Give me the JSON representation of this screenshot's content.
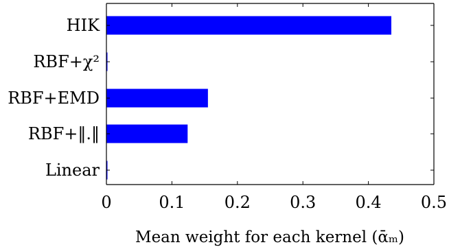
{
  "chart_data": {
    "type": "bar",
    "orientation": "horizontal",
    "categories": [
      "HIK",
      "RBF+χ²",
      "RBF+EMD",
      "RBF+‖.‖",
      "Linear"
    ],
    "values": [
      0.435,
      0.001,
      0.155,
      0.124,
      0.001
    ],
    "xlabel": "Mean weight for each kernel (ᾱₘ)",
    "ylabel": "",
    "title": "",
    "xlim": [
      0,
      0.5
    ],
    "xticks": [
      0,
      0.1,
      0.2,
      0.3,
      0.4,
      0.5
    ],
    "xtick_labels": [
      "0",
      "0.1",
      "0.2",
      "0.3",
      "0.4",
      "0.5"
    ],
    "grid": false,
    "bar_color": "#0000ff",
    "axis_color": "#000000"
  }
}
